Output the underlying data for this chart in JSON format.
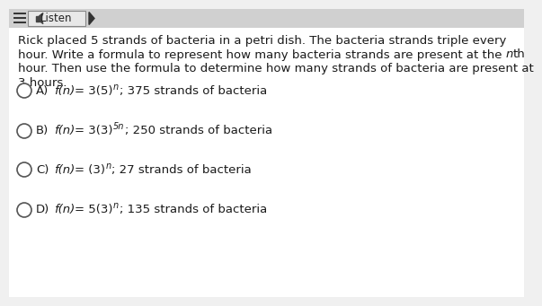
{
  "bg_color": "#f0f0f0",
  "header_bg": "#d0d0d0",
  "body_bg": "#ffffff",
  "text_color": "#1a1a1a",
  "circle_edge_color": "#555555",
  "circle_face_color": "#ffffff",
  "paragraph": "Rick placed 5 strands of bacteria in a petri dish. The bacteria strands triple every\nhour. Write a formula to represent how many bacteria strands are present at the nth\nhour. Then use the formula to determine how many strands of bacteria are present at\n3 hours.",
  "options": [
    {
      "label": "A)",
      "pre": "= 3(5)",
      "sup": "n",
      "post": "; 375 strands of bacteria"
    },
    {
      "label": "B)",
      "pre": "= 3(3)",
      "sup": "5n",
      "post": "; 250 strands of bacteria"
    },
    {
      "label": "C)",
      "pre": "= (3)",
      "sup": "n",
      "post": "; 27 strands of bacteria"
    },
    {
      "label": "D)",
      "pre": "= 5(3)",
      "sup": "n",
      "post": "; 135 strands of bacteria"
    }
  ],
  "font_size_para": 9.5,
  "font_size_opt": 9.5,
  "font_size_sup": 7.0
}
